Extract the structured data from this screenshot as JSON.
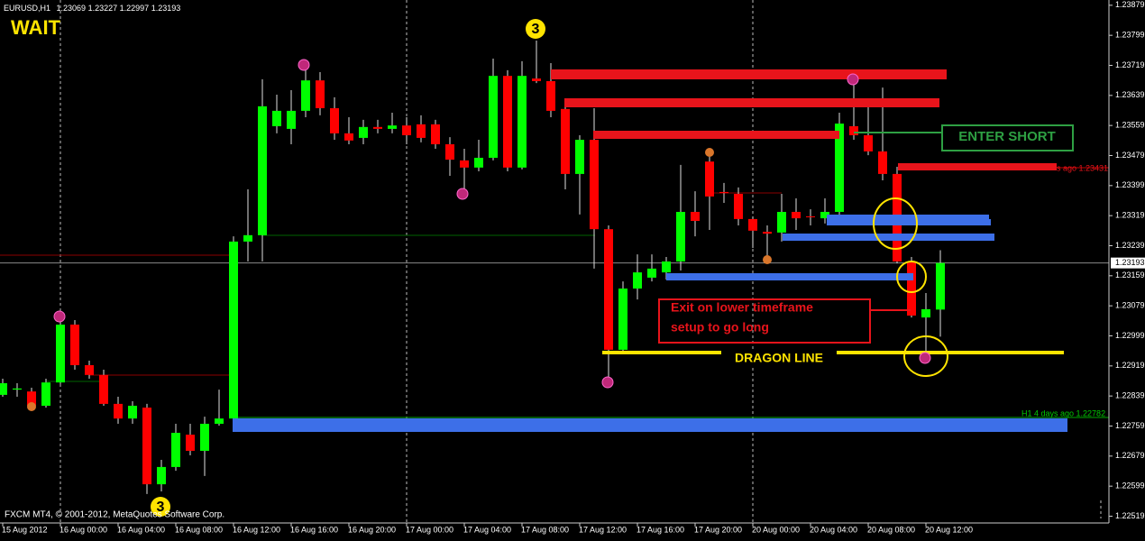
{
  "chart_data": {
    "type": "candlestick",
    "title": "EURUSD,H1",
    "categories": [
      "15 Aug 2012",
      null,
      null,
      null,
      "16 Aug 00:00",
      null,
      null,
      null,
      "16 Aug 04:00",
      null,
      null,
      null,
      "16 Aug 08:00",
      null,
      null,
      null,
      "16 Aug 12:00",
      null,
      null,
      null,
      "16 Aug 16:00",
      null,
      null,
      null,
      "16 Aug 20:00",
      null,
      null,
      null,
      "17 Aug 00:00",
      null,
      null,
      null,
      "17 Aug 04:00",
      null,
      null,
      null,
      "17 Aug 08:00",
      null,
      null,
      null,
      "17 Aug 12:00",
      null,
      null,
      null,
      "17 Aug 16:00",
      null,
      null,
      null,
      "17 Aug 20:00",
      null,
      null,
      null,
      "20 Aug 00:00",
      null,
      null,
      null,
      "20 Aug 04:00",
      null,
      null,
      null,
      "20 Aug 08:00",
      null,
      null,
      null,
      "20 Aug 12:00",
      null
    ],
    "open": [
      1.22842,
      1.22856,
      1.22851,
      1.22813,
      1.22875,
      1.23029,
      1.22921,
      1.22895,
      1.22818,
      1.22779,
      1.22808,
      1.22604,
      1.2265,
      1.22736,
      1.22693,
      1.22765,
      1.22779,
      1.2325,
      1.23267,
      1.23557,
      1.2355,
      1.23598,
      1.23679,
      1.23605,
      1.23538,
      1.23526,
      1.23555,
      1.2355,
      1.23559,
      1.23562,
      1.23562,
      1.23509,
      1.23466,
      1.23447,
      1.23473,
      1.23691,
      1.23447,
      1.23684,
      1.23677,
      1.23603,
      1.2343,
      1.23521,
      1.23283,
      1.22962,
      1.23125,
      1.23154,
      1.23168,
      1.23197,
      1.23329,
      1.23463,
      1.23382,
      1.23377,
      1.2331,
      1.23276,
      1.23274,
      1.23329,
      1.23317,
      1.23312,
      1.23329,
      1.23557,
      1.23533,
      1.2349,
      1.2343,
      1.23197,
      1.23048,
      1.23069
    ],
    "high": [
      1.22885,
      1.22873,
      1.22861,
      1.22885,
      1.23048,
      1.23041,
      1.22933,
      1.22909,
      1.22837,
      1.22825,
      1.22818,
      1.22669,
      1.22765,
      1.22765,
      1.22784,
      1.22856,
      1.23264,
      1.23389,
      1.23682,
      1.23641,
      1.23653,
      1.23706,
      1.23701,
      1.23634,
      1.23581,
      1.23574,
      1.23574,
      1.23593,
      1.23581,
      1.23586,
      1.23574,
      1.23528,
      1.23497,
      1.23521,
      1.23737,
      1.23706,
      1.2373,
      1.23785,
      1.23725,
      1.23629,
      1.23533,
      1.23605,
      1.23293,
      1.23144,
      1.23216,
      1.23216,
      1.23209,
      1.23454,
      1.23384,
      1.2349,
      1.23406,
      1.23394,
      1.23317,
      1.23293,
      1.23377,
      1.23365,
      1.23336,
      1.23365,
      1.23593,
      1.23677,
      1.23629,
      1.2366,
      1.23449,
      1.23209,
      1.23113,
      1.23227
    ],
    "low": [
      1.22837,
      1.22837,
      1.22801,
      1.22808,
      1.22871,
      1.22909,
      1.22885,
      1.22813,
      1.22765,
      1.22765,
      1.22578,
      1.22585,
      1.2264,
      1.22681,
      1.22626,
      1.2276,
      1.22775,
      1.23197,
      1.23197,
      1.23538,
      1.23509,
      1.23581,
      1.23586,
      1.23521,
      1.23509,
      1.23509,
      1.23538,
      1.23538,
      1.23509,
      1.23514,
      1.23497,
      1.23425,
      1.23377,
      1.23437,
      1.23466,
      1.23437,
      1.23442,
      1.23672,
      1.23581,
      1.23389,
      1.23322,
      1.23178,
      1.22875,
      1.22952,
      1.23096,
      1.23144,
      1.23149,
      1.23173,
      1.23264,
      1.23281,
      1.23353,
      1.23293,
      1.23233,
      1.23209,
      1.2325,
      1.23281,
      1.23293,
      1.23298,
      1.23317,
      1.23521,
      1.2348,
      1.23413,
      1.23192,
      1.23048,
      1.22938,
      1.22997
    ],
    "close": [
      1.22873,
      1.22859,
      1.22813,
      1.22875,
      1.23029,
      1.22921,
      1.22895,
      1.22818,
      1.22779,
      1.22813,
      1.22604,
      1.2265,
      1.22741,
      1.22693,
      1.22765,
      1.22779,
      1.2325,
      1.23267,
      1.2361,
      1.23598,
      1.23598,
      1.23679,
      1.23605,
      1.23538,
      1.23519,
      1.23555,
      1.2355,
      1.23559,
      1.23533,
      1.23526,
      1.23509,
      1.23468,
      1.23447,
      1.23473,
      1.23691,
      1.23447,
      1.23691,
      1.23677,
      1.23598,
      1.2343,
      1.23521,
      1.23283,
      1.22962,
      1.23125,
      1.23168,
      1.23178,
      1.23197,
      1.23329,
      1.23305,
      1.2337,
      1.23379,
      1.2331,
      1.23279,
      1.23271,
      1.23329,
      1.23312,
      1.23315,
      1.23329,
      1.23564,
      1.23533,
      1.2349,
      1.2343,
      1.23197,
      1.23053,
      1.2307,
      1.23193
    ],
    "up_color": "#00ff00",
    "down_color": "#ff0000",
    "wick_color": "#e0e0e0",
    "ylim": [
      1.22501,
      1.23893
    ],
    "yticks": [
      1.23879,
      1.23799,
      1.23719,
      1.23639,
      1.23559,
      1.23479,
      1.23399,
      1.23319,
      1.23239,
      1.23159,
      1.23079,
      1.22999,
      1.22919,
      1.22839,
      1.22759,
      1.22679,
      1.22599,
      1.22519
    ],
    "grid": false,
    "annotations": {
      "wait": "WAIT",
      "enter_short": "ENTER SHORT",
      "exit_line1": "Exit on lower timeframe",
      "exit_line2": "setup to go long",
      "dragon": "DRAGON LINE",
      "wave_top": "3",
      "wave_bottom": "3",
      "ago_red": "s ago 1.23431",
      "ago_green": "H1 4 days ago 1.22782",
      "copyright": "FXCM MT4, © 2001-2012, MetaQuotes Software Corp."
    }
  }
}
